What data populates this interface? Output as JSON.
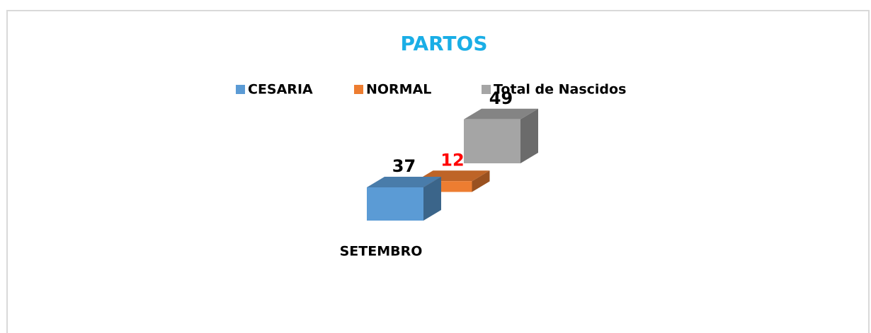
{
  "chart_data": {
    "type": "bar3d",
    "title": "PARTOS",
    "categories": [
      "SETEMBRO"
    ],
    "series": [
      {
        "name": "CESARIA",
        "color": "#5b9bd5",
        "label_color": "#000000",
        "values": [
          37
        ]
      },
      {
        "name": "NORMAL",
        "color": "#ed7d31",
        "label_color": "#ff0000",
        "values": [
          12
        ]
      },
      {
        "name": "Total de Nascidos",
        "color": "#a5a5a5",
        "label_color": "#000000",
        "values": [
          49
        ]
      }
    ],
    "legend": "top"
  }
}
